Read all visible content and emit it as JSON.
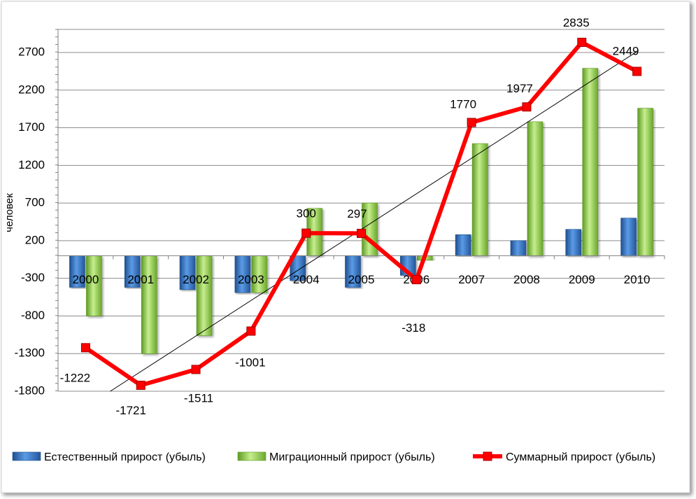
{
  "chart_data": {
    "type": "bar",
    "categories": [
      "2000",
      "2001",
      "2002",
      "2003",
      "2004",
      "2005",
      "2006",
      "2007",
      "2008",
      "2009",
      "2010"
    ],
    "series": [
      {
        "name": "Естественный прирост (убыль)",
        "type": "bar",
        "color": "#3a78c9",
        "values": [
          -420,
          -420,
          -450,
          -490,
          -330,
          -420,
          -260,
          280,
          200,
          350,
          500
        ]
      },
      {
        "name": "Миграционный прирост (убыль)",
        "type": "bar",
        "color": "#92d050",
        "values": [
          -800,
          -1300,
          -1060,
          -490,
          630,
          700,
          -60,
          1490,
          1780,
          2490,
          1960
        ]
      },
      {
        "name": "Суммарный прирост (убыль)",
        "type": "line",
        "color": "#ff0000",
        "values": [
          -1222,
          -1721,
          -1511,
          -1001,
          300,
          297,
          -318,
          1770,
          1977,
          2835,
          2449
        ],
        "data_labels": [
          "-1222",
          "-1721",
          "-1511",
          "-1001",
          "300",
          "297",
          "-318",
          "1770",
          "1977",
          "2835",
          "2449"
        ]
      }
    ],
    "trendline": {
      "series": "Суммарный прирост (убыль)",
      "type": "linear",
      "color": "#000000"
    },
    "ylabel": "человек",
    "xlabel": "",
    "title": "",
    "ylim": [
      -1800,
      3100
    ],
    "yticks": [
      -1800,
      -1300,
      -800,
      -300,
      200,
      700,
      1200,
      1700,
      2200,
      2700
    ],
    "ytick_labels": [
      "-1800",
      "-1300",
      "-800",
      "-300",
      "200",
      "700",
      "1200",
      "1700",
      "2200",
      "2700"
    ],
    "grid": true,
    "legend_position": "bottom"
  }
}
